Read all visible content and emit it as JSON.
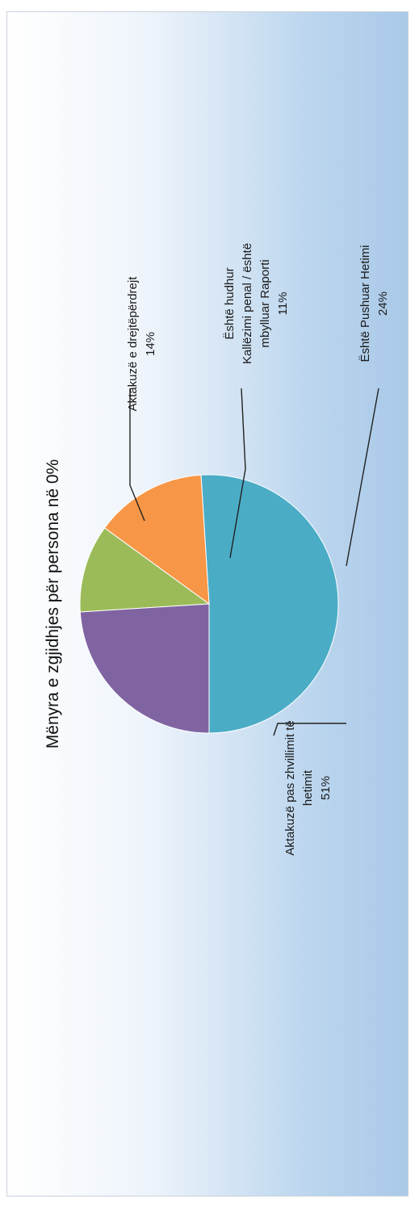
{
  "chart_data": {
    "type": "pie",
    "title": "Mënyra e zgjidhjes për persona në 0%",
    "slices": [
      {
        "label": "Aktakuzë pas zhvillimit të hetimit",
        "value": 51,
        "value_label": "51%",
        "color": "#4bacc6"
      },
      {
        "label": "Aktakuzë e drejtëpërdrejt",
        "value": 14,
        "value_label": "14%",
        "color": "#f79646"
      },
      {
        "label": "Është hudhur Kallëzimi penal / është mbylluar Raporti",
        "value": 11,
        "value_label": "11%",
        "color": "#9bbb59"
      },
      {
        "label": "Është Pushuar Hetimi",
        "value": 24,
        "value_label": "24%",
        "color": "#8064a2"
      }
    ]
  }
}
